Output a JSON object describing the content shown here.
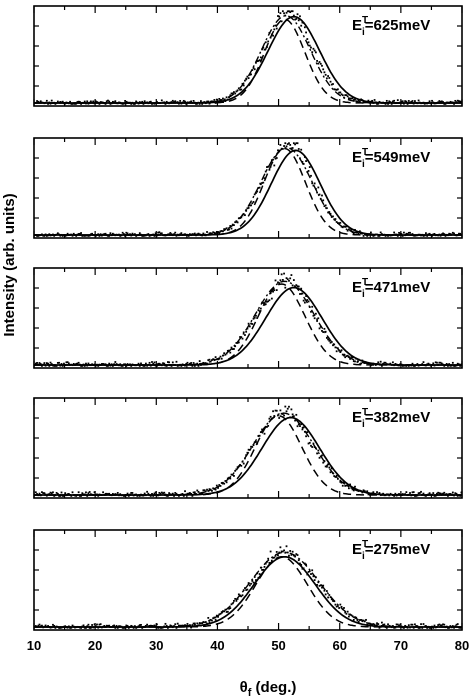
{
  "chart_data": {
    "type": "line",
    "xlabel": {
      "symbol": "θ",
      "sub": "f",
      "rest": " (deg.)"
    },
    "ylabel": "Intensity (arb. units)",
    "xlim": [
      10,
      80
    ],
    "xticks": [
      "10",
      "20",
      "30",
      "40",
      "50",
      "60",
      "70",
      "80"
    ],
    "yticks_labeled": false,
    "line_styles": [
      "solid",
      "dashed",
      "dash-dot"
    ],
    "data_points_style": "dotted scatter",
    "panels": [
      {
        "energy": {
          "prefix": "E",
          "sup": "T",
          "sub": "i",
          "value": "=625meV"
        },
        "solid": {
          "center": 52.5,
          "width": 4.2,
          "amplitude": 0.96
        },
        "dashed": {
          "center": 51.0,
          "width": 3.3,
          "amplitude": 0.93
        },
        "dashdot": {
          "center": 51.2,
          "width": 4.0,
          "amplitude": 0.97
        },
        "noise": 0.03
      },
      {
        "energy": {
          "prefix": "E",
          "sup": "T",
          "sub": "i",
          "value": "=549meV"
        },
        "solid": {
          "center": 52.8,
          "width": 4.0,
          "amplitude": 0.94
        },
        "dashed": {
          "center": 51.0,
          "width": 3.4,
          "amplitude": 0.96
        },
        "dashdot": {
          "center": 51.3,
          "width": 4.2,
          "amplitude": 0.97
        },
        "noise": 0.03
      },
      {
        "energy": {
          "prefix": "E",
          "sup": "T",
          "sub": "i",
          "value": "=471meV"
        },
        "solid": {
          "center": 52.5,
          "width": 4.6,
          "amplitude": 0.86
        },
        "dashed": {
          "center": 50.5,
          "width": 3.8,
          "amplitude": 0.9
        },
        "dashdot": {
          "center": 51.0,
          "width": 4.8,
          "amplitude": 0.93
        },
        "noise": 0.04
      },
      {
        "energy": {
          "prefix": "E",
          "sup": "T",
          "sub": "i",
          "value": "=382meV"
        },
        "solid": {
          "center": 52.0,
          "width": 4.7,
          "amplitude": 0.86
        },
        "dashed": {
          "center": 50.0,
          "width": 3.8,
          "amplitude": 0.88
        },
        "dashdot": {
          "center": 50.8,
          "width": 5.0,
          "amplitude": 0.91
        },
        "noise": 0.04
      },
      {
        "energy": {
          "prefix": "E",
          "sup": "T",
          "sub": "i",
          "value": "=275meV"
        },
        "solid": {
          "center": 51.0,
          "width": 5.0,
          "amplitude": 0.78
        },
        "dashed": {
          "center": 50.5,
          "width": 4.2,
          "amplitude": 0.78
        },
        "dashdot": {
          "center": 51.0,
          "width": 5.6,
          "amplitude": 0.83
        },
        "noise": 0.04
      }
    ]
  }
}
